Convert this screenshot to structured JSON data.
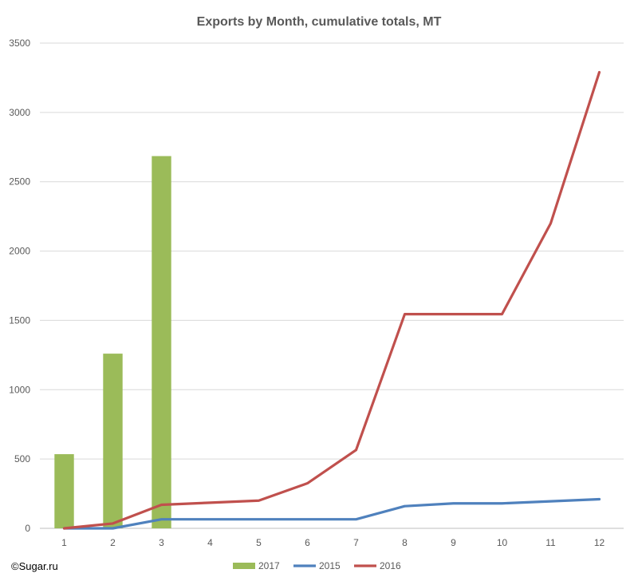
{
  "chart_data": {
    "type": "bar+line",
    "title": "Exports by Month, cumulative totals, MT",
    "categories": [
      "1",
      "2",
      "3",
      "4",
      "5",
      "6",
      "7",
      "8",
      "9",
      "10",
      "11",
      "12"
    ],
    "ylim": [
      0,
      3500
    ],
    "yticks": [
      0,
      500,
      1000,
      1500,
      2000,
      2500,
      3000,
      3500
    ],
    "grid": true,
    "legend_position": "bottom",
    "series": [
      {
        "name": "2017",
        "kind": "bar",
        "color": "#9BBB59",
        "values": [
          535,
          1260,
          2685,
          null,
          null,
          null,
          null,
          null,
          null,
          null,
          null,
          null
        ]
      },
      {
        "name": "2015",
        "kind": "line",
        "color": "#4F81BD",
        "values": [
          0,
          0,
          65,
          65,
          65,
          65,
          65,
          160,
          180,
          180,
          195,
          210
        ]
      },
      {
        "name": "2016",
        "kind": "line",
        "color": "#C0504D",
        "values": [
          0,
          35,
          170,
          185,
          200,
          325,
          565,
          1545,
          1545,
          1545,
          2200,
          3290
        ]
      }
    ]
  },
  "footer": {
    "copyright": "©Sugar.ru"
  }
}
